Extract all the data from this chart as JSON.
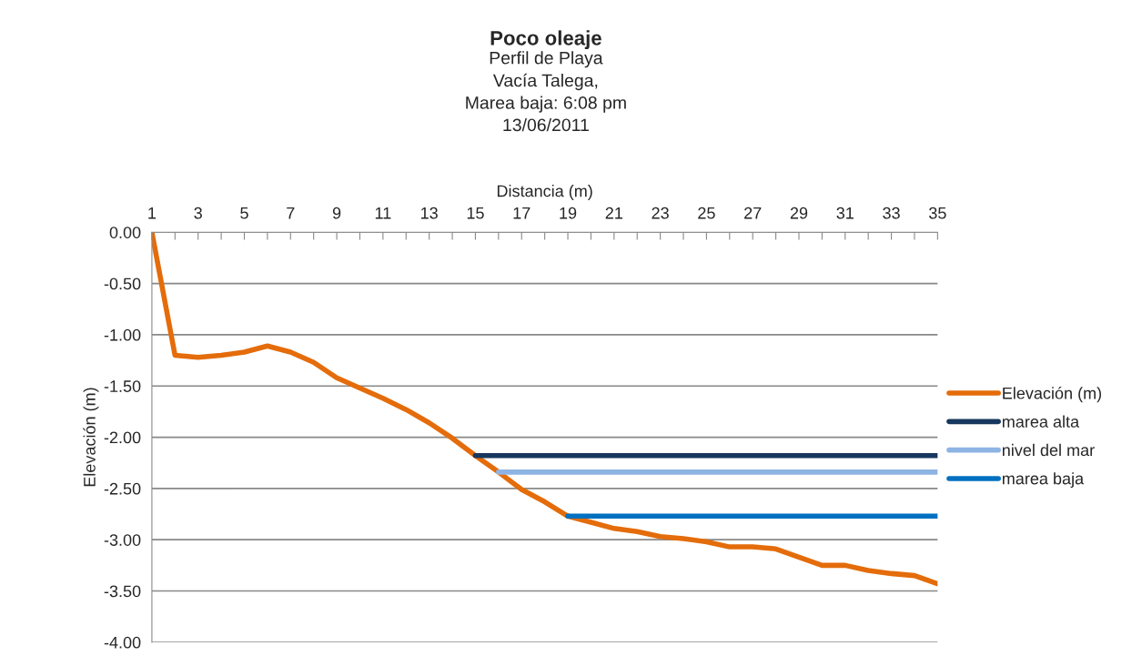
{
  "chart_data": {
    "type": "line",
    "title": "Poco oleaje",
    "subtitle": "Perfil de Playa\nVacía Talega,\nMarea baja: 6:08 pm\n13/06/2011",
    "xlabel": "Distancia (m)",
    "ylabel": "Elevación (m)",
    "categories": [
      "1",
      null,
      "3",
      null,
      "5",
      null,
      "7",
      null,
      "9",
      null,
      "11",
      null,
      "13",
      null,
      "15",
      null,
      "17",
      null,
      "19",
      null,
      "21",
      null,
      "23",
      null,
      "25",
      null,
      "27",
      null,
      "29",
      null,
      "31",
      null,
      "33",
      null,
      "35"
    ],
    "series": [
      {
        "name": "Elevación (m)",
        "color": "#e46c0a",
        "values": [
          0.0,
          -1.2,
          -1.22,
          -1.2,
          -1.17,
          -1.11,
          -1.17,
          -1.27,
          -1.42,
          -1.52,
          -1.62,
          -1.73,
          -1.86,
          -2.01,
          -2.18,
          -2.34,
          -2.51,
          -2.63,
          -2.77,
          -2.83,
          -2.89,
          -2.92,
          -2.97,
          -2.99,
          -3.02,
          -3.07,
          -3.07,
          -3.09,
          -3.17,
          -3.25,
          -3.25,
          -3.3,
          -3.33,
          -3.35,
          -3.43
        ]
      },
      {
        "name": "marea alta",
        "color": "#17375e",
        "values": [
          null,
          null,
          null,
          null,
          null,
          null,
          null,
          null,
          null,
          null,
          null,
          null,
          null,
          null,
          -2.18,
          -2.18,
          -2.18,
          -2.18,
          -2.18,
          -2.18,
          -2.18,
          -2.18,
          -2.18,
          -2.18,
          -2.18,
          -2.18,
          -2.18,
          -2.18,
          -2.18,
          -2.18,
          -2.18,
          -2.18,
          -2.18,
          -2.18,
          -2.18
        ]
      },
      {
        "name": "nivel del mar",
        "color": "#8eb4e3",
        "values": [
          null,
          null,
          null,
          null,
          null,
          null,
          null,
          null,
          null,
          null,
          null,
          null,
          null,
          null,
          null,
          -2.34,
          -2.34,
          -2.34,
          -2.34,
          -2.34,
          -2.34,
          -2.34,
          -2.34,
          -2.34,
          -2.34,
          -2.34,
          -2.34,
          -2.34,
          -2.34,
          -2.34,
          -2.34,
          -2.34,
          -2.34,
          -2.34,
          -2.34
        ]
      },
      {
        "name": "marea baja",
        "color": "#0070c0",
        "values": [
          null,
          null,
          null,
          null,
          null,
          null,
          null,
          null,
          null,
          null,
          null,
          null,
          null,
          null,
          null,
          null,
          null,
          null,
          -2.77,
          -2.77,
          -2.77,
          -2.77,
          -2.77,
          -2.77,
          -2.77,
          -2.77,
          -2.77,
          -2.77,
          -2.77,
          -2.77,
          -2.77,
          -2.77,
          -2.77,
          -2.77,
          -2.77
        ]
      }
    ],
    "ylim": [
      -4,
      0
    ],
    "yticks": [
      {
        "value": 0,
        "label": "0.00"
      },
      {
        "value": -0.5,
        "label": "-0.50"
      },
      {
        "value": -1,
        "label": "-1.00"
      },
      {
        "value": -1.5,
        "label": "-1.50"
      },
      {
        "value": -2,
        "label": "-2.00"
      },
      {
        "value": -2.5,
        "label": "-2.50"
      },
      {
        "value": -3,
        "label": "-3.00"
      },
      {
        "value": -3.5,
        "label": "-3.50"
      },
      {
        "value": -4,
        "label": "-4.00"
      }
    ],
    "grid": "y",
    "legend": "right",
    "marker": "none",
    "line_style": "solid"
  }
}
